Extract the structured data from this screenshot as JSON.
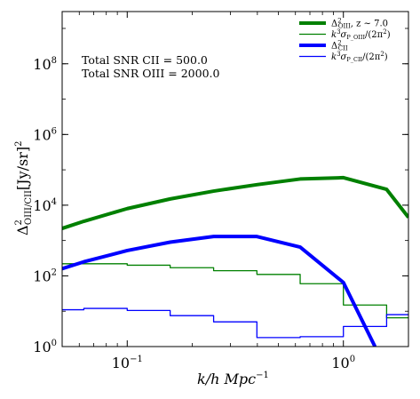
{
  "chart_data": {
    "type": "line",
    "xlabel": "k/h Mpc",
    "xlabel_sup": "−1",
    "ylabel_main": "Δ",
    "ylabel_sup": "2",
    "ylabel_sub": "OIII/CII",
    "ylabel_unit": "[Jy/sr]",
    "ylabel_unit_sup": "2",
    "xscale": "log",
    "yscale": "log",
    "xlim": [
      0.05,
      2.0
    ],
    "ylim": [
      1,
      3000000000
    ],
    "x_ticks": [
      {
        "value": 0.1,
        "base": "10",
        "exp": "−1"
      },
      {
        "value": 1,
        "base": "10",
        "exp": "0"
      }
    ],
    "y_ticks": [
      {
        "value": 1,
        "base": "10",
        "exp": "0"
      },
      {
        "value": 100,
        "base": "10",
        "exp": "2"
      },
      {
        "value": 10000,
        "base": "10",
        "exp": "4"
      },
      {
        "value": 1000000,
        "base": "10",
        "exp": "6"
      },
      {
        "value": 100000000,
        "base": "10",
        "exp": "8"
      }
    ],
    "annotations": [
      "Total SNR CII = 500.0",
      "Total SNR OIII = 2000.0"
    ],
    "legend_placement": "top-right",
    "series": [
      {
        "id": "oiii_signal",
        "legend_main": "Δ",
        "legend_sup": "2",
        "legend_sub": "OIII",
        "legend_extra": ", z ∼ 7.0",
        "color": "#008000",
        "style": "thick",
        "step": false,
        "x": [
          0.05,
          0.063,
          0.1,
          0.158,
          0.251,
          0.398,
          0.631,
          1.0,
          1.585,
          2.0
        ],
        "y": [
          2200,
          3500,
          8000,
          15000,
          25000,
          38000,
          55000,
          60000,
          28000,
          4500
        ]
      },
      {
        "id": "oiii_noise",
        "legend_main": "k",
        "legend_sup": "3",
        "legend_mid": "σ",
        "legend_sub": "P_OIII",
        "legend_extra": "/(2π",
        "legend_extra_sup": "2",
        "legend_tail": ")",
        "color": "#008000",
        "style": "thin",
        "step": true,
        "edges": [
          0.05,
          0.063,
          0.1,
          0.158,
          0.251,
          0.398,
          0.631,
          1.0,
          1.585,
          2.0
        ],
        "values": [
          220,
          220,
          200,
          170,
          140,
          110,
          60,
          15,
          6.5
        ]
      },
      {
        "id": "cii_signal",
        "legend_main": "Δ",
        "legend_sup": "2",
        "legend_sub": "CII",
        "color": "#0000ff",
        "style": "thick",
        "step": false,
        "x": [
          0.05,
          0.063,
          0.1,
          0.158,
          0.251,
          0.398,
          0.631,
          1.0,
          1.4
        ],
        "y": [
          160,
          250,
          520,
          900,
          1300,
          1300,
          650,
          65,
          1
        ]
      },
      {
        "id": "cii_noise",
        "legend_main": "k",
        "legend_sup": "3",
        "legend_mid": "σ",
        "legend_sub": "P_CII",
        "legend_extra": "/(2π",
        "legend_extra_sup": "2",
        "legend_tail": ")",
        "color": "#0000ff",
        "style": "thin",
        "step": true,
        "edges": [
          0.05,
          0.063,
          0.1,
          0.158,
          0.251,
          0.398,
          0.631,
          1.0,
          1.585,
          2.0
        ],
        "values": [
          11,
          12,
          10.5,
          7.5,
          5,
          1.8,
          1.9,
          3.7,
          8
        ]
      }
    ]
  }
}
